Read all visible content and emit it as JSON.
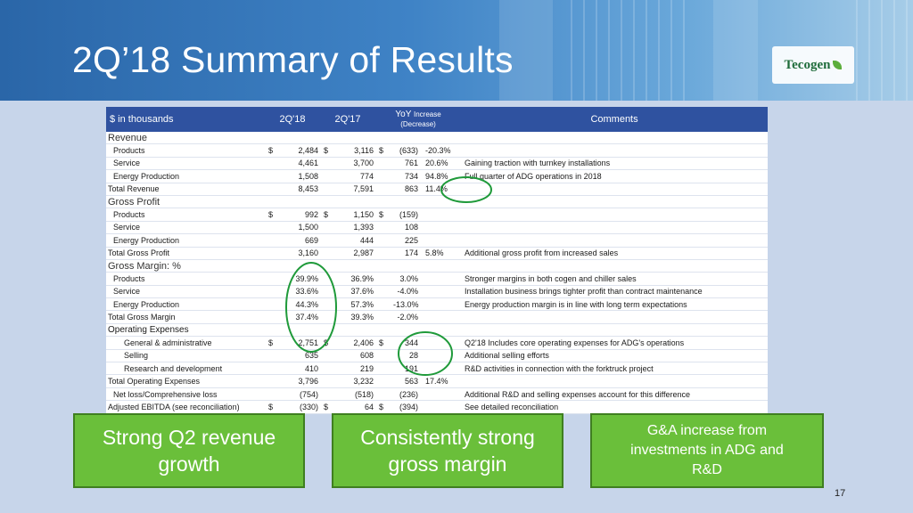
{
  "slide": {
    "title": "2Q’18 Summary of Results",
    "logo_text": "Tecogen",
    "page_number": "17"
  },
  "table": {
    "headers": {
      "label": "$ in thousands",
      "q2_18": "2Q'18",
      "q2_17": "2Q'17",
      "yoy_top": "YoY",
      "yoy_small": "Increase",
      "yoy_bottom": "(Decrease)",
      "comments": "Comments"
    },
    "rows": [
      {
        "type": "section",
        "label": "Revenue"
      },
      {
        "type": "item",
        "indent": 1,
        "label": "Products",
        "d1": "$",
        "v1": "2,484",
        "d2": "$",
        "v2": "3,116",
        "d3": "$",
        "v3": "(633)",
        "pct": "-20.3%",
        "comment": ""
      },
      {
        "type": "item",
        "indent": 1,
        "label": "Service",
        "d1": "",
        "v1": "4,461",
        "d2": "",
        "v2": "3,700",
        "d3": "",
        "v3": "761",
        "pct": "20.6%",
        "comment": "Gaining traction with turnkey installations"
      },
      {
        "type": "item",
        "indent": 1,
        "label": "Energy Production",
        "d1": "",
        "v1": "1,508",
        "d2": "",
        "v2": "774",
        "d3": "",
        "v3": "734",
        "pct": "94.8%",
        "comment": "Full quarter of ADG operations in 2018"
      },
      {
        "type": "total",
        "indent": 0,
        "label": "Total Revenue",
        "d1": "",
        "v1": "8,453",
        "d2": "",
        "v2": "7,591",
        "d3": "",
        "v3": "863",
        "pct": "11.4%",
        "comment": ""
      },
      {
        "type": "section",
        "label": "Gross Profit"
      },
      {
        "type": "item",
        "indent": 1,
        "label": "Products",
        "d1": "$",
        "v1": "992",
        "d2": "$",
        "v2": "1,150",
        "d3": "$",
        "v3": "(159)",
        "pct": "",
        "comment": ""
      },
      {
        "type": "item",
        "indent": 1,
        "label": "Service",
        "d1": "",
        "v1": "1,500",
        "d2": "",
        "v2": "1,393",
        "d3": "",
        "v3": "108",
        "pct": "",
        "comment": ""
      },
      {
        "type": "item",
        "indent": 1,
        "label": "Energy Production",
        "d1": "",
        "v1": "669",
        "d2": "",
        "v2": "444",
        "d3": "",
        "v3": "225",
        "pct": "",
        "comment": ""
      },
      {
        "type": "total",
        "indent": 0,
        "label": "Total Gross Profit",
        "d1": "",
        "v1": "3,160",
        "d2": "",
        "v2": "2,987",
        "d3": "",
        "v3": "174",
        "pct": "5.8%",
        "comment": "Additional gross profit from increased sales"
      },
      {
        "type": "section",
        "label": "Gross Margin: %"
      },
      {
        "type": "item",
        "indent": 1,
        "label": "Products",
        "d1": "",
        "v1": "39.9%",
        "d2": "",
        "v2": "36.9%",
        "d3": "",
        "v3": "3.0%",
        "pct": "",
        "comment": "Stronger margins in both cogen and chiller sales"
      },
      {
        "type": "item",
        "indent": 1,
        "label": "Service",
        "d1": "",
        "v1": "33.6%",
        "d2": "",
        "v2": "37.6%",
        "d3": "",
        "v3": "-4.0%",
        "pct": "",
        "comment": "Installation business brings tighter profit than contract maintenance"
      },
      {
        "type": "item",
        "indent": 1,
        "label": "Energy Production",
        "d1": "",
        "v1": "44.3%",
        "d2": "",
        "v2": "57.3%",
        "d3": "",
        "v3": "-13.0%",
        "pct": "",
        "comment": "Energy production margin is in line with long term expectations"
      },
      {
        "type": "total",
        "indent": 0,
        "label": "Total Gross Margin",
        "d1": "",
        "v1": "37.4%",
        "d2": "",
        "v2": "39.3%",
        "d3": "",
        "v3": "-2.0%",
        "pct": "",
        "comment": ""
      },
      {
        "type": "section2",
        "label": "Operating Expenses"
      },
      {
        "type": "item",
        "indent": 2,
        "label": "General & administrative",
        "d1": "$",
        "v1": "2,751",
        "d2": "$",
        "v2": "2,406",
        "d3": "$",
        "v3": "344",
        "pct": "",
        "comment": "Q2'18 Includes core operating expenses for ADG's operations"
      },
      {
        "type": "item",
        "indent": 2,
        "label": "Selling",
        "d1": "",
        "v1": "635",
        "d2": "",
        "v2": "608",
        "d3": "",
        "v3": "28",
        "pct": "",
        "comment": "Additional selling efforts"
      },
      {
        "type": "item",
        "indent": 2,
        "label": "Research and development",
        "d1": "",
        "v1": "410",
        "d2": "",
        "v2": "219",
        "d3": "",
        "v3": "191",
        "pct": "",
        "comment": "R&D activities in connection with the forktruck project"
      },
      {
        "type": "total",
        "indent": 0,
        "label": "Total Operating Expenses",
        "d1": "",
        "v1": "3,796",
        "d2": "",
        "v2": "3,232",
        "d3": "",
        "v3": "563",
        "pct": "17.4%",
        "comment": ""
      },
      {
        "type": "item",
        "indent": 1,
        "label": "Net loss/Comprehensive loss",
        "d1": "",
        "v1": "(754)",
        "d2": "",
        "v2": "(518)",
        "d3": "",
        "v3": "(236)",
        "pct": "",
        "comment": "Additional R&D and selling expenses account for this difference"
      },
      {
        "type": "total",
        "indent": 0,
        "label": "Adjusted EBITDA (see reconciliation)",
        "d1": "$",
        "v1": "(330)",
        "d2": "$",
        "v2": "64",
        "d3": "$",
        "v3": "(394)",
        "pct": "",
        "comment": "See detailed reconciliation"
      }
    ]
  },
  "callouts": {
    "box1": [
      "Strong Q2 revenue",
      "growth"
    ],
    "box2": [
      "Consistently strong",
      "gross margin"
    ],
    "box3": [
      "G&A increase from",
      "investments in ADG and",
      "R&D"
    ]
  },
  "colors": {
    "header_blue": "#2f52a0",
    "callout_green": "#6abf3a",
    "circle_green": "#1f9a3a"
  }
}
